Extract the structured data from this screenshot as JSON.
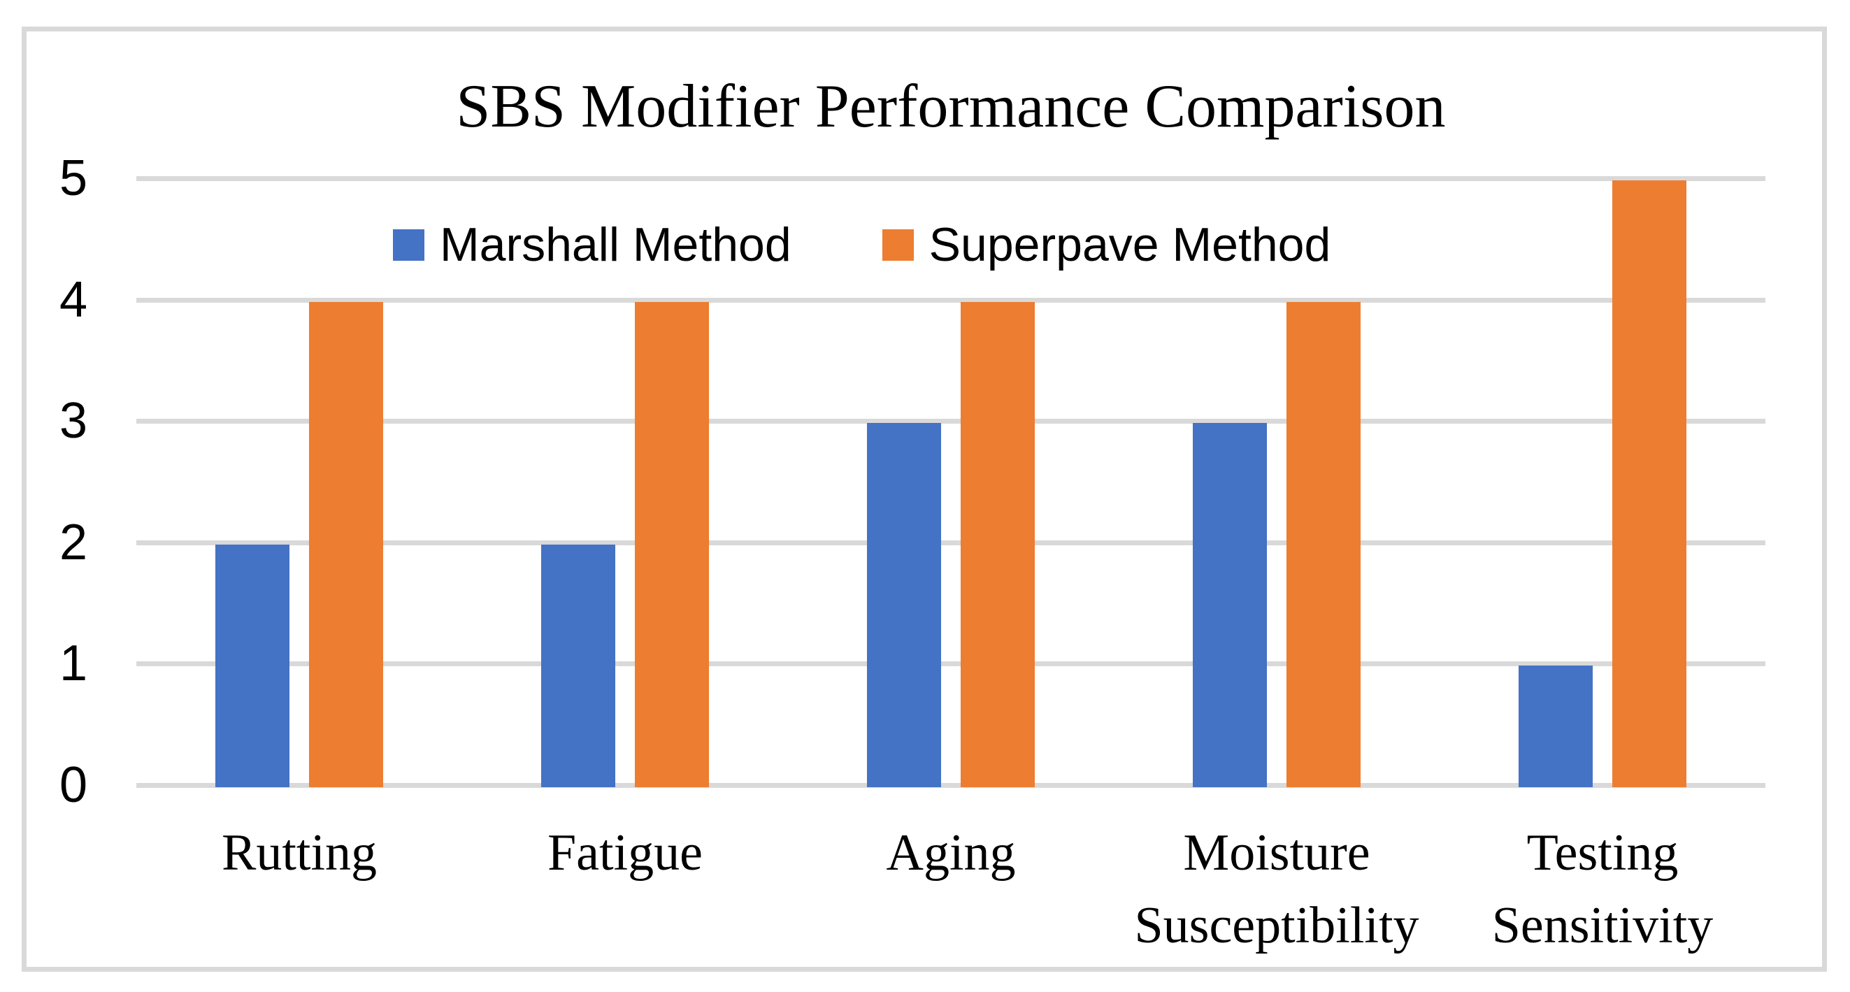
{
  "chart_data": {
    "type": "bar",
    "title": "SBS Modifier Performance Comparison",
    "categories": [
      "Rutting",
      "Fatigue",
      "Aging",
      "Moisture Susceptibility",
      "Testing Sensitivity"
    ],
    "series": [
      {
        "name": "Marshall Method",
        "color": "#4472C4",
        "values": [
          2,
          2,
          3,
          3,
          1
        ]
      },
      {
        "name": "Superpave Method",
        "color": "#ED7D31",
        "values": [
          4,
          4,
          4,
          4,
          5
        ]
      }
    ],
    "ylim": [
      0,
      5
    ],
    "yticks": [
      0,
      1,
      2,
      3,
      4,
      5
    ],
    "xlabel": "",
    "ylabel": "",
    "grid": "horizontal",
    "gridline_color": "#D9D9D9",
    "frame_color": "#D9D9D9",
    "background": "#FFFFFF",
    "legend_position": "top-inside"
  }
}
